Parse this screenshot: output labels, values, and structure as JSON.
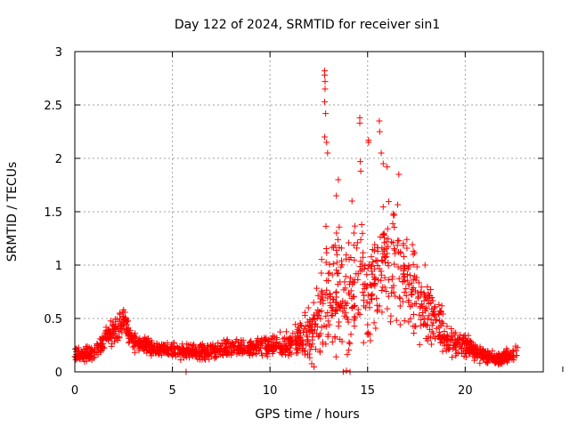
{
  "chart_data": {
    "type": "scatter",
    "title": "Day 122 of 2024, SRMTID for receiver sin1",
    "xlabel": "GPS time / hours",
    "ylabel": "SRMTID / TECUs",
    "xlim": [
      0,
      24
    ],
    "ylim": [
      0,
      3
    ],
    "xticks": [
      0,
      5,
      10,
      15,
      20
    ],
    "xtick_labels": [
      "0",
      "5",
      "10",
      "15",
      "20"
    ],
    "yticks": [
      0,
      0.5,
      1,
      1.5,
      2,
      2.5,
      3
    ],
    "ytick_labels": [
      "0",
      "0.5",
      "1",
      "1.5",
      "2",
      "2.5",
      "3"
    ],
    "grid": true,
    "marker": "+",
    "color": "#ff0000",
    "series": [
      {
        "name": "sin1",
        "profile": {
          "description": "approximate envelope of the scatter (hour, typical value, spread)",
          "x": [
            0.0,
            1.0,
            1.5,
            2.0,
            2.5,
            3.0,
            4.0,
            5.0,
            6.0,
            7.0,
            8.0,
            9.0,
            10.0,
            11.0,
            12.0,
            12.7,
            13.0,
            13.5,
            14.0,
            14.5,
            15.0,
            15.5,
            16.0,
            16.5,
            17.0,
            17.5,
            18.0,
            18.5,
            19.0,
            19.5,
            20.0,
            20.5,
            21.0,
            21.5,
            22.0,
            22.7
          ],
          "y": [
            0.17,
            0.17,
            0.3,
            0.38,
            0.48,
            0.28,
            0.22,
            0.2,
            0.18,
            0.2,
            0.22,
            0.22,
            0.24,
            0.25,
            0.35,
            0.6,
            0.8,
            0.75,
            0.6,
            0.85,
            0.75,
            0.95,
            1.05,
            1.0,
            0.85,
            0.75,
            0.6,
            0.48,
            0.35,
            0.28,
            0.25,
            0.2,
            0.15,
            0.12,
            0.12,
            0.2
          ],
          "spread": [
            0.06,
            0.07,
            0.1,
            0.1,
            0.1,
            0.08,
            0.06,
            0.06,
            0.06,
            0.07,
            0.07,
            0.07,
            0.08,
            0.1,
            0.18,
            0.45,
            0.55,
            0.5,
            0.45,
            0.5,
            0.45,
            0.5,
            0.45,
            0.45,
            0.4,
            0.35,
            0.3,
            0.2,
            0.15,
            0.1,
            0.09,
            0.08,
            0.07,
            0.06,
            0.06,
            0.07
          ]
        },
        "notable_points": [
          {
            "x": 12.8,
            "y": 2.82
          },
          {
            "x": 12.8,
            "y": 2.78
          },
          {
            "x": 12.82,
            "y": 2.72
          },
          {
            "x": 12.82,
            "y": 2.65
          },
          {
            "x": 12.8,
            "y": 2.53
          },
          {
            "x": 12.85,
            "y": 2.42
          },
          {
            "x": 12.8,
            "y": 2.2
          },
          {
            "x": 12.9,
            "y": 2.15
          },
          {
            "x": 12.95,
            "y": 2.05
          },
          {
            "x": 14.6,
            "y": 2.38
          },
          {
            "x": 14.6,
            "y": 2.33
          },
          {
            "x": 14.62,
            "y": 1.97
          },
          {
            "x": 14.65,
            "y": 1.88
          },
          {
            "x": 15.05,
            "y": 2.17
          },
          {
            "x": 15.05,
            "y": 2.15
          },
          {
            "x": 15.6,
            "y": 2.35
          },
          {
            "x": 15.62,
            "y": 2.25
          },
          {
            "x": 15.7,
            "y": 2.05
          },
          {
            "x": 15.8,
            "y": 1.95
          },
          {
            "x": 16.0,
            "y": 1.92
          },
          {
            "x": 16.6,
            "y": 1.85
          },
          {
            "x": 13.5,
            "y": 1.8
          },
          {
            "x": 13.4,
            "y": 1.65
          },
          {
            "x": 14.2,
            "y": 1.6
          },
          {
            "x": 5.7,
            "y": 0.0
          },
          {
            "x": 13.75,
            "y": 0.0
          },
          {
            "x": 14.1,
            "y": 0.0
          },
          {
            "x": 2.5,
            "y": 0.58
          },
          {
            "x": 2.45,
            "y": 0.56
          },
          {
            "x": 2.3,
            "y": 0.55
          }
        ]
      }
    ]
  }
}
